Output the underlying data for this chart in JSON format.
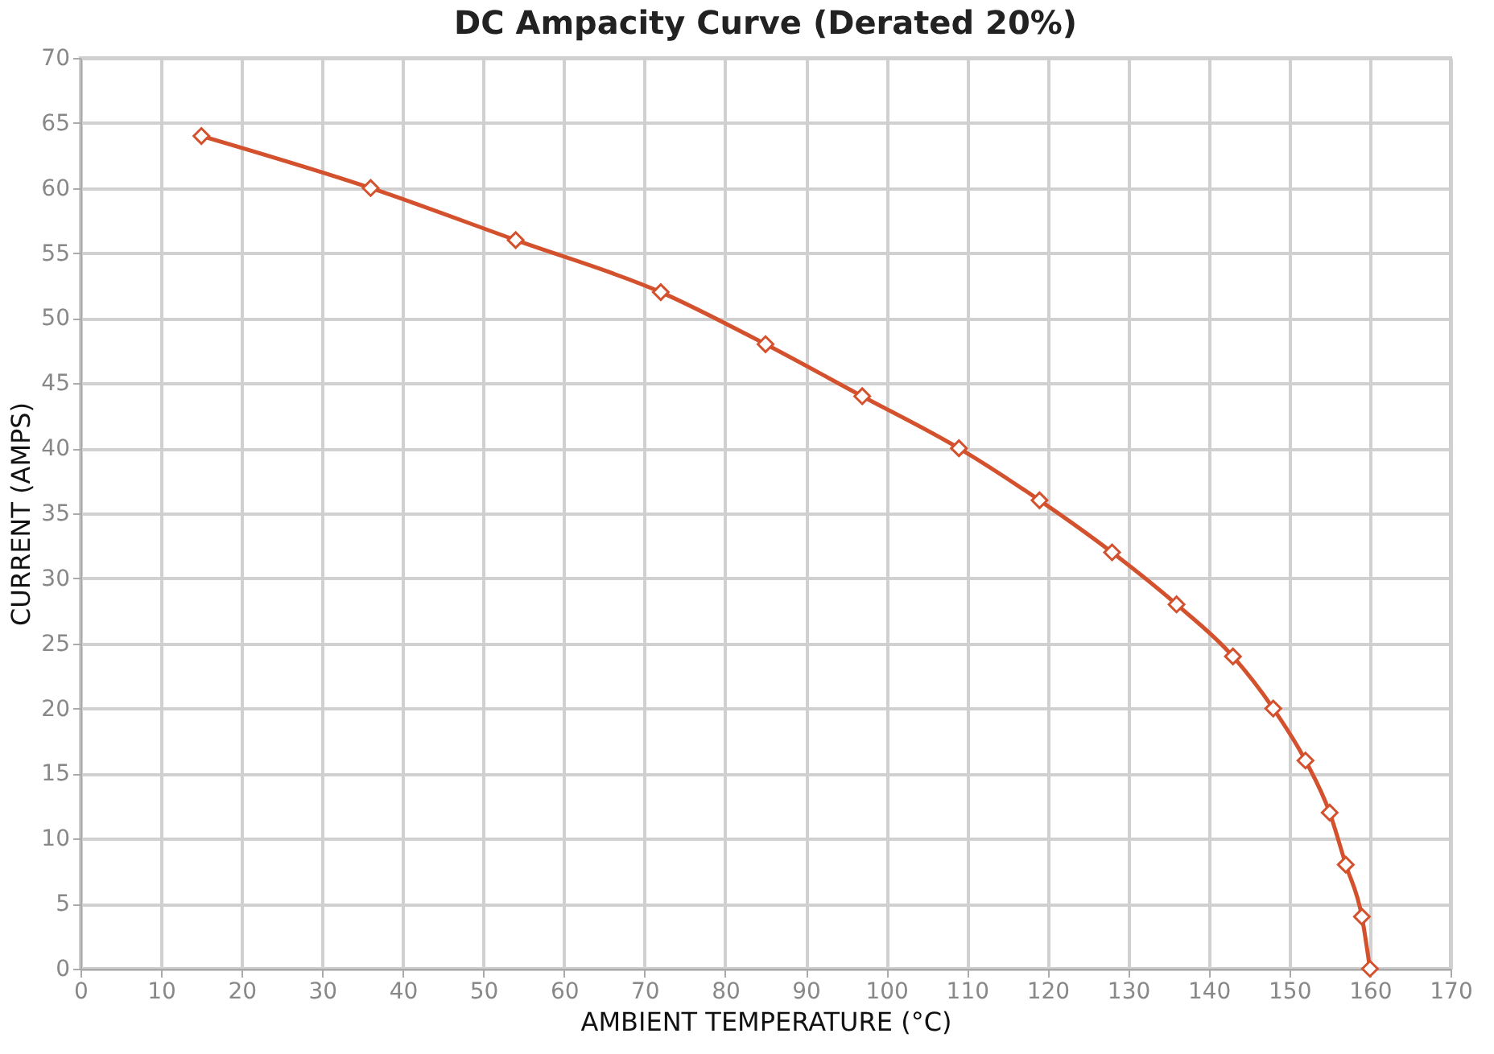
{
  "chart_data": {
    "type": "line",
    "title": "DC Ampacity Curve (Derated 20%)",
    "xlabel": "AMBIENT TEMPERATURE (°C)",
    "ylabel": "CURRENT (AMPS)",
    "x": [
      15,
      36,
      54,
      72,
      85,
      97,
      109,
      119,
      128,
      136,
      143,
      148,
      152,
      155,
      157,
      159,
      160
    ],
    "series": [
      {
        "color": "#d4512e",
        "values": [
          64,
          60,
          56,
          52,
          48,
          44,
          40,
          36,
          32,
          28,
          24,
          20,
          16,
          12,
          8,
          4,
          0
        ]
      }
    ],
    "xlim": [
      0,
      170
    ],
    "xticks": [
      0,
      10,
      20,
      30,
      40,
      50,
      60,
      70,
      80,
      90,
      100,
      110,
      120,
      130,
      140,
      150,
      160,
      170
    ],
    "ylim": [
      0,
      70
    ],
    "yticks": [
      0,
      5,
      10,
      15,
      20,
      25,
      30,
      35,
      40,
      45,
      50,
      55,
      60,
      65,
      70
    ],
    "grid": true,
    "marker": "diamond",
    "line_style": "solid"
  }
}
